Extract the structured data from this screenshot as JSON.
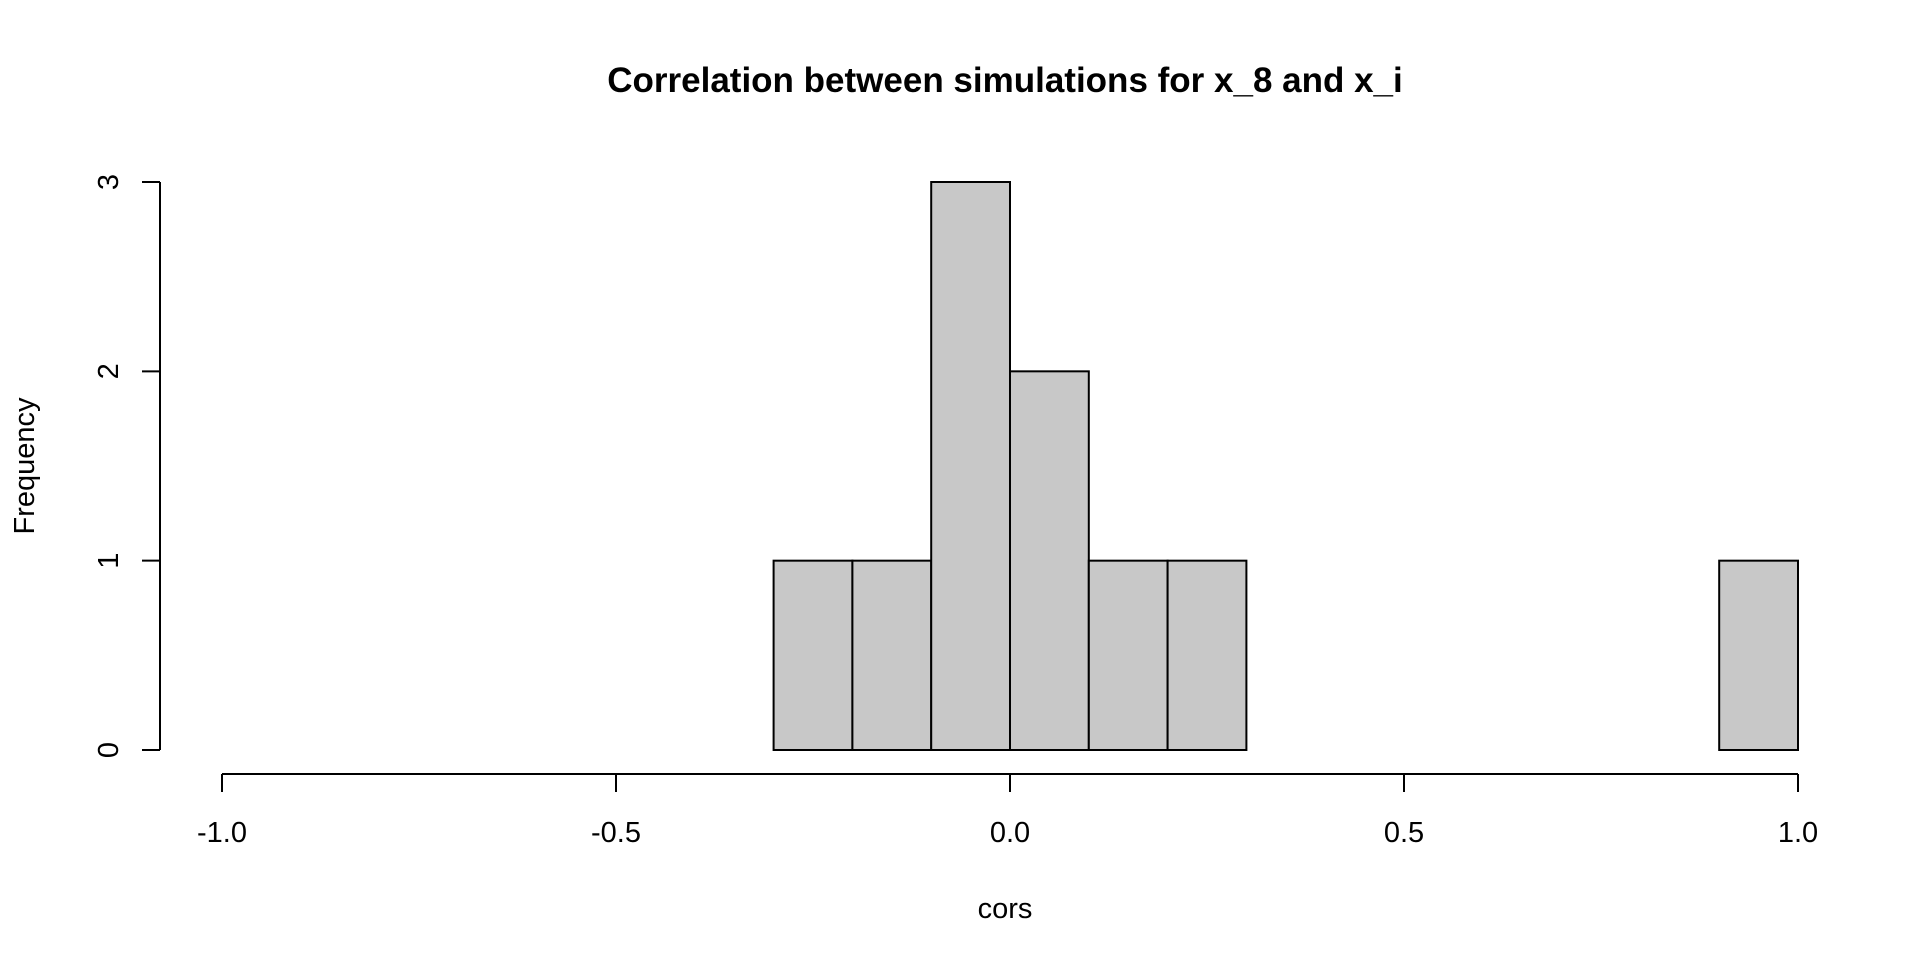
{
  "chart_data": {
    "type": "bar",
    "subtype": "histogram",
    "title": "Correlation between simulations for x_8 and x_i",
    "xlabel": "cors",
    "ylabel": "Frequency",
    "xlim": [
      -1.0,
      1.0
    ],
    "ylim": [
      0,
      3
    ],
    "x_ticks": [
      -1.0,
      -0.5,
      0.0,
      0.5,
      1.0
    ],
    "x_tick_labels": [
      "-1.0",
      "-0.5",
      "0.0",
      "0.5",
      "1.0"
    ],
    "y_ticks": [
      0,
      1,
      2,
      3
    ],
    "y_tick_labels": [
      "0",
      "1",
      "2",
      "3"
    ],
    "bin_edges": [
      -1.0,
      -0.9,
      -0.8,
      -0.7,
      -0.6,
      -0.5,
      -0.4,
      -0.3,
      -0.2,
      -0.1,
      0.0,
      0.1,
      0.2,
      0.3,
      0.4,
      0.5,
      0.6,
      0.7,
      0.8,
      0.9,
      1.0
    ],
    "values": [
      0,
      0,
      0,
      0,
      0,
      0,
      0,
      1,
      1,
      3,
      2,
      1,
      1,
      0,
      0,
      0,
      0,
      0,
      0,
      1
    ],
    "bar_color": "#c8c8c8",
    "border_color": "#000000",
    "grid": false,
    "legend": "none"
  }
}
